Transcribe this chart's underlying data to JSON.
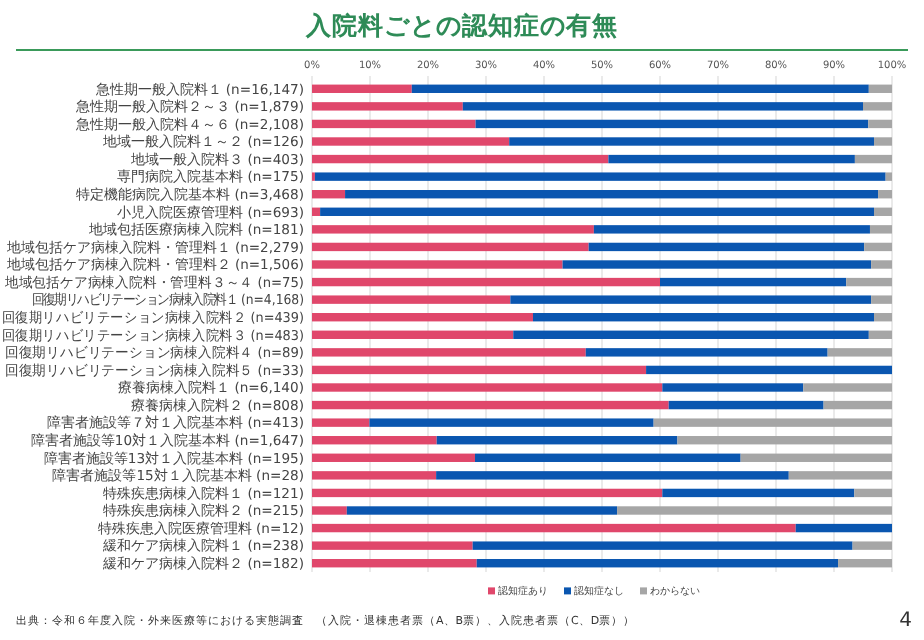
{
  "chart_data": {
    "type": "bar",
    "orientation": "horizontal",
    "stacked": true,
    "title": "入院料ごとの認知症の有無",
    "categories": [
      "急性期一般入院料１ (n=16,147)",
      "急性期一般入院料２～３ (n=1,879)",
      "急性期一般入院料４～６ (n=2,108)",
      "地域一般入院料１～２ (n=126)",
      "地域一般入院料３ (n=403)",
      "専門病院入院基本料 (n=175)",
      "特定機能病院入院基本料 (n=3,468)",
      "小児入院医療管理料 (n=693)",
      "地域包括医療病棟入院料 (n=181)",
      "地域包括ケア病棟入院料・管理料１ (n=2,279)",
      "地域包括ケア病棟入院料・管理料２ (n=1,506)",
      "地域包括ケア病棟入院料・管理料３～４ (n=75)",
      "回復期リハビリテーション病棟入院料１ (n=4,168)",
      "回復期リハビリテーション病棟入院料２ (n=439)",
      "回復期リハビリテーション病棟入院料３ (n=483)",
      "回復期リハビリテーション病棟入院料４ (n=89)",
      "回復期リハビリテーション病棟入院料５ (n=33)",
      "療養病棟入院料１ (n=6,140)",
      "療養病棟入院料２ (n=808)",
      "障害者施設等７対１入院基本料 (n=413)",
      "障害者施設等10対１入院基本料 (n=1,647)",
      "障害者施設等13対１入院基本料 (n=195)",
      "障害者施設等15対１入院基本料 (n=28)",
      "特殊疾患病棟入院料１ (n=121)",
      "特殊疾患病棟入院料２ (n=215)",
      "特殊疾患入院医療管理料 (n=12)",
      "緩和ケア病棟入院料１ (n=238)",
      "緩和ケア病棟入院料２ (n=182)"
    ],
    "series": [
      {
        "name": "認知症あり",
        "color": "#e0476b",
        "values": [
          17.2,
          26.0,
          28.2,
          34.0,
          51.1,
          0.5,
          5.7,
          1.4,
          48.6,
          47.7,
          43.2,
          60.0,
          34.2,
          38.1,
          34.7,
          47.2,
          57.6,
          60.4,
          61.5,
          9.9,
          21.5,
          28.1,
          21.4,
          60.4,
          6.0,
          83.4,
          27.7,
          28.4
        ]
      },
      {
        "name": "認知症なし",
        "color": "#0a56b0",
        "values": [
          78.8,
          69.0,
          67.7,
          62.9,
          42.5,
          98.4,
          91.9,
          95.5,
          47.6,
          47.5,
          53.2,
          32.1,
          62.2,
          58.8,
          61.3,
          41.7,
          42.4,
          24.3,
          26.7,
          49.0,
          41.5,
          45.8,
          60.8,
          33.1,
          46.6,
          16.6,
          65.5,
          62.3
        ]
      },
      {
        "name": "わからない",
        "color": "#a6a6a6",
        "values": [
          4.0,
          5.0,
          4.1,
          3.1,
          6.4,
          1.1,
          2.4,
          3.1,
          3.8,
          4.8,
          3.6,
          7.9,
          3.6,
          3.1,
          4.0,
          11.1,
          0,
          15.3,
          11.8,
          41.1,
          37.0,
          26.1,
          17.8,
          6.5,
          47.4,
          0,
          6.8,
          9.3
        ]
      }
    ],
    "xlim": [
      0,
      100
    ],
    "xticks": [
      {
        "value": 0,
        "label": "0%"
      },
      {
        "value": 10,
        "label": "10%"
      },
      {
        "value": 20,
        "label": "20%"
      },
      {
        "value": 30,
        "label": "30%"
      },
      {
        "value": 40,
        "label": "40%"
      },
      {
        "value": 50,
        "label": "50%"
      },
      {
        "value": 60,
        "label": "60%"
      },
      {
        "value": 70,
        "label": "70%"
      },
      {
        "value": 80,
        "label": "80%"
      },
      {
        "value": 90,
        "label": "90%"
      },
      {
        "value": 100,
        "label": "100%"
      }
    ],
    "grid": "x",
    "legend": "bottom",
    "annotations": [
      "出典：令和６年度入院・外来医療等における実態調査　（入院・退棟患者票（A、B票）、入院患者票（C、D票））",
      "4"
    ]
  }
}
